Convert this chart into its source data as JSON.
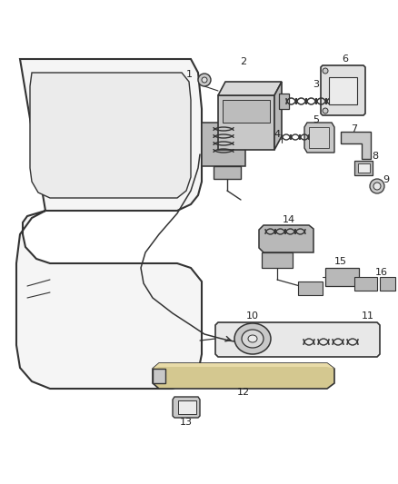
{
  "bg_color": "#ffffff",
  "line_color": "#333333",
  "figure_width": 4.38,
  "figure_height": 5.33,
  "dpi": 100,
  "door_color": "#f5f5f5",
  "window_color": "#ebebeb",
  "part_color": "#c8c8c8",
  "part_color2": "#b8b8b8",
  "handle_color": "#d4c890"
}
